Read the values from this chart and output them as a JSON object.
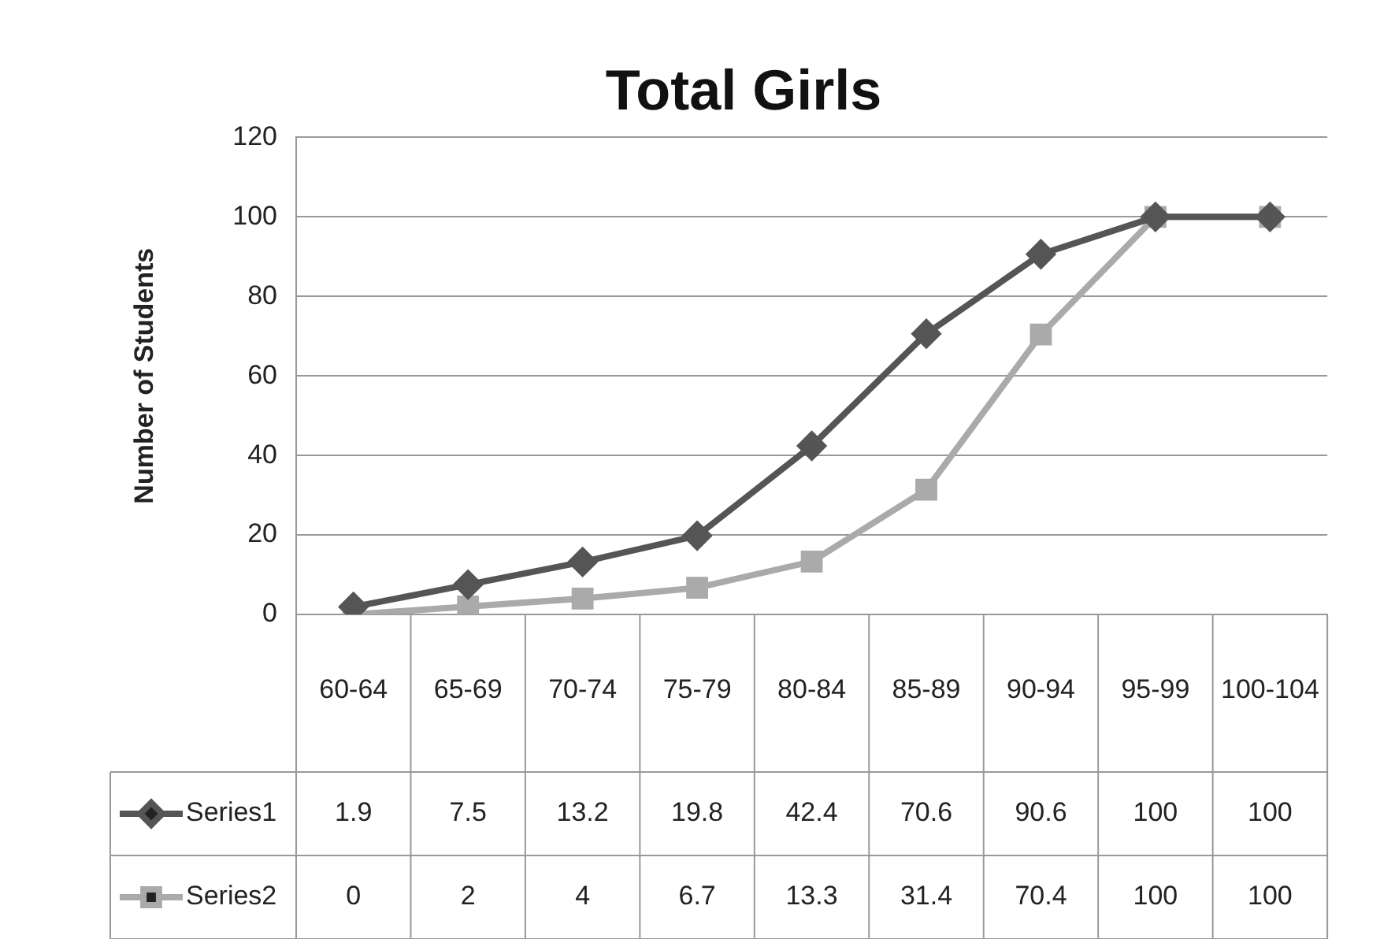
{
  "chart_data": {
    "type": "line",
    "title": "Total Girls",
    "ylabel": "Number of Students",
    "categories": [
      "60-64",
      "65-69",
      "70-74",
      "75-79",
      "80-84",
      "85-89",
      "90-94",
      "95-99",
      "100-104"
    ],
    "series": [
      {
        "name": "Series1",
        "color": "#555555",
        "marker": "diamond",
        "values": [
          1.9,
          7.5,
          13.2,
          19.8,
          42.4,
          70.6,
          90.6,
          100,
          100
        ]
      },
      {
        "name": "Series2",
        "color": "#aaaaaa",
        "marker": "square",
        "values": [
          0,
          2,
          4,
          6.7,
          13.3,
          31.4,
          70.4,
          100,
          100
        ]
      }
    ],
    "ylim": [
      0,
      120
    ],
    "yticks": [
      0,
      20,
      40,
      60,
      80,
      100,
      120
    ],
    "grid": "y",
    "legend": "bottom",
    "data_labels": true
  }
}
